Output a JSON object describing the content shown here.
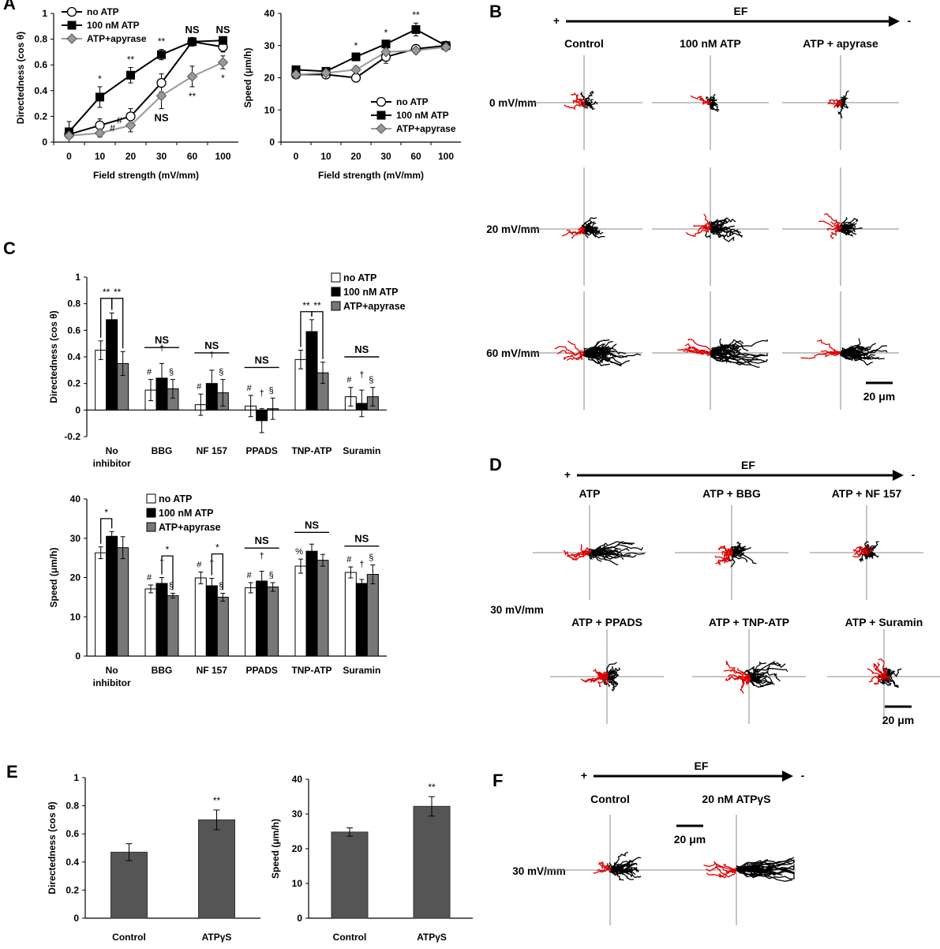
{
  "panels": {
    "A": "A",
    "B": "B",
    "C": "C",
    "D": "D",
    "E": "E",
    "F": "F"
  },
  "colors": {
    "track_red": "#e00000",
    "track_black": "#000000",
    "bar_gray": "#777777",
    "marker_gray": "#999999",
    "axis_gray": "#888888"
  },
  "chart_data": [
    {
      "id": "A-directedness",
      "type": "line",
      "categories": [
        "0",
        "10",
        "20",
        "30",
        "60",
        "100"
      ],
      "xlabel": "Field strength (mV/mm)",
      "ylabel": "Directedness (cos θ)",
      "ylim": [
        0,
        1
      ],
      "yticks": [
        "0",
        "0.2",
        "0.4",
        "0.6",
        "0.8",
        "1"
      ],
      "legend_position": "top-left",
      "series": [
        {
          "name": "no ATP",
          "marker": "open-circle",
          "values": [
            0.06,
            0.13,
            0.2,
            0.46,
            0.78,
            0.74
          ],
          "errors": [
            0.03,
            0.05,
            0.06,
            0.07,
            0.03,
            0.04
          ]
        },
        {
          "name": "100 nM ATP",
          "marker": "filled-square",
          "values": [
            0.08,
            0.35,
            0.52,
            0.68,
            0.78,
            0.79
          ],
          "errors": [
            0.08,
            0.08,
            0.06,
            0.04,
            0.03,
            0.02
          ]
        },
        {
          "name": "ATP+apyrase",
          "marker": "gray-diamond",
          "values": [
            0.05,
            0.07,
            0.13,
            0.36,
            0.51,
            0.62
          ],
          "errors": [
            0.02,
            0.03,
            0.05,
            0.1,
            0.08,
            0.05
          ]
        }
      ],
      "annotations": [
        {
          "cat": 1,
          "text": "*",
          "series": "100 nM ATP",
          "pos": "above"
        },
        {
          "cat": 2,
          "text": "**",
          "series": "100 nM ATP",
          "pos": "above"
        },
        {
          "cat": 3,
          "text": "**",
          "series": "100 nM ATP",
          "pos": "above"
        },
        {
          "cat": 4,
          "text": "NS",
          "series": "100 nM ATP",
          "pos": "above"
        },
        {
          "cat": 5,
          "text": "NS",
          "series": "100 nM ATP",
          "pos": "above"
        },
        {
          "cat": 1,
          "text": "#",
          "series": "ATP+apyrase",
          "pos": "right"
        },
        {
          "cat": 2,
          "text": "#",
          "series": "ATP+apyrase",
          "pos": "left"
        },
        {
          "cat": 3,
          "text": "NS",
          "series": "ATP+apyrase",
          "pos": "below"
        },
        {
          "cat": 4,
          "text": "**",
          "series": "ATP+apyrase",
          "pos": "below"
        },
        {
          "cat": 5,
          "text": "*",
          "series": "ATP+apyrase",
          "pos": "below"
        }
      ]
    },
    {
      "id": "A-speed",
      "type": "line",
      "categories": [
        "0",
        "10",
        "20",
        "30",
        "60",
        "100"
      ],
      "xlabel": "Field strength (mV/mm)",
      "ylabel": "Speed (μm/h)",
      "ylim": [
        0,
        40
      ],
      "yticks": [
        "0",
        "10",
        "20",
        "30",
        "40"
      ],
      "legend_position": "bottom-right",
      "series": [
        {
          "name": "no ATP",
          "marker": "open-circle",
          "values": [
            21,
            21,
            20,
            26.5,
            29,
            30
          ],
          "errors": [
            1,
            1,
            0.8,
            2,
            1,
            1
          ]
        },
        {
          "name": "100 nM ATP",
          "marker": "filled-square",
          "values": [
            22.5,
            22,
            26.5,
            30.5,
            35,
            30
          ],
          "errors": [
            1,
            1,
            1,
            1,
            2,
            1
          ]
        },
        {
          "name": "ATP+apyrase",
          "marker": "gray-diamond",
          "values": [
            21,
            21.5,
            22.5,
            28,
            28.5,
            29.5
          ],
          "errors": [
            1,
            1,
            1,
            1,
            1,
            1
          ]
        }
      ],
      "annotations": [
        {
          "cat": 2,
          "text": "*",
          "series": "100 nM ATP",
          "pos": "above"
        },
        {
          "cat": 3,
          "text": "*",
          "series": "100 nM ATP",
          "pos": "above"
        },
        {
          "cat": 4,
          "text": "**",
          "series": "100 nM ATP",
          "pos": "above"
        }
      ]
    },
    {
      "id": "C-directedness",
      "type": "bar",
      "categories": [
        "No\ninhibitor",
        "BBG",
        "NF 157",
        "PPADS",
        "TNP-ATP",
        "Suramin"
      ],
      "ylabel": "Directedness (cos θ)",
      "ylim": [
        -0.2,
        1
      ],
      "yticks": [
        "-0.2",
        "0",
        "0.2",
        "0.4",
        "0.6",
        "0.8",
        "1"
      ],
      "legend_position": "top-right",
      "series": [
        {
          "name": "no ATP",
          "fill": "white",
          "values": [
            0.45,
            0.15,
            0.04,
            0.03,
            0.38,
            0.1
          ],
          "errors": [
            0.07,
            0.08,
            0.08,
            0.08,
            0.07,
            0.07
          ]
        },
        {
          "name": "100 nM ATP",
          "fill": "black",
          "values": [
            0.68,
            0.24,
            0.2,
            -0.08,
            0.59,
            0.05
          ],
          "errors": [
            0.05,
            0.11,
            0.1,
            0.09,
            0.09,
            0.1
          ]
        },
        {
          "name": "ATP+apyrase",
          "fill": "gray",
          "values": [
            0.35,
            0.16,
            0.13,
            0.01,
            0.28,
            0.1
          ],
          "errors": [
            0.09,
            0.07,
            0.1,
            0.08,
            0.08,
            0.07
          ]
        }
      ],
      "brackets": [
        {
          "cat": 0,
          "pairs": [
            [
              0,
              1
            ],
            [
              1,
              2
            ]
          ],
          "labels": [
            "**",
            "**"
          ],
          "y": 0.84
        },
        {
          "cat": 4,
          "pairs": [
            [
              0,
              1
            ],
            [
              1,
              2
            ]
          ],
          "labels": [
            "**",
            "**"
          ],
          "y": 0.74
        }
      ],
      "group_labels": [
        {
          "cat": 1,
          "text": "NS",
          "y": 0.47
        },
        {
          "cat": 2,
          "text": "NS",
          "y": 0.43
        },
        {
          "cat": 3,
          "text": "NS",
          "y": 0.32
        },
        {
          "cat": 5,
          "text": "NS",
          "y": 0.4
        }
      ],
      "symbols": [
        {
          "cat": 1,
          "marks": [
            "#",
            "†",
            "§"
          ]
        },
        {
          "cat": 2,
          "marks": [
            "#",
            "†",
            "§"
          ]
        },
        {
          "cat": 3,
          "marks": [
            "#",
            "†",
            "§"
          ]
        },
        {
          "cat": 5,
          "marks": [
            "#",
            "†",
            "§"
          ]
        }
      ]
    },
    {
      "id": "C-speed",
      "type": "bar",
      "categories": [
        "No\ninhibitor",
        "BBG",
        "NF 157",
        "PPADS",
        "TNP-ATP",
        "Suramin"
      ],
      "ylabel": "Speed (μm/h)",
      "ylim": [
        0,
        40
      ],
      "yticks": [
        "0",
        "10",
        "20",
        "30",
        "40"
      ],
      "legend_position": "top-right",
      "series": [
        {
          "name": "no ATP",
          "fill": "white",
          "values": [
            26.3,
            17.1,
            19.9,
            17.4,
            22.9,
            21.3
          ],
          "errors": [
            1.5,
            1,
            1.5,
            1.3,
            1.8,
            1.4
          ]
        },
        {
          "name": "100 nM ATP",
          "fill": "black",
          "values": [
            30.5,
            18.5,
            17.9,
            19.1,
            26.7,
            18.5
          ],
          "errors": [
            1.2,
            1.5,
            1.9,
            2.5,
            1.8,
            1
          ]
        },
        {
          "name": "ATP+apyrase",
          "fill": "gray",
          "values": [
            27.6,
            15.4,
            15,
            17.6,
            24.4,
            20.8
          ],
          "errors": [
            2.8,
            0.6,
            1,
            1.1,
            1.5,
            2.4
          ]
        }
      ],
      "brackets": [
        {
          "cat": 0,
          "pairs": [
            [
              0,
              1
            ]
          ],
          "labels": [
            "*"
          ],
          "y": 35
        },
        {
          "cat": 1,
          "pairs": [
            [
              1,
              2
            ]
          ],
          "labels": [
            "*"
          ],
          "y": 25.5
        },
        {
          "cat": 2,
          "pairs": [
            [
              1,
              2
            ]
          ],
          "labels": [
            "*"
          ],
          "y": 26
        }
      ],
      "group_labels": [
        {
          "cat": 3,
          "text": "NS",
          "y": 27.5
        },
        {
          "cat": 4,
          "text": "NS",
          "y": 31.5
        },
        {
          "cat": 5,
          "text": "NS",
          "y": 28
        }
      ],
      "symbols": [
        {
          "cat": 1,
          "marks": [
            "#",
            "†",
            "§"
          ]
        },
        {
          "cat": 2,
          "marks": [
            "#",
            "†",
            "§"
          ]
        },
        {
          "cat": 3,
          "marks": [
            "#",
            "†",
            "§"
          ]
        },
        {
          "cat": 4,
          "marks": [
            "%",
            "",
            ""
          ]
        },
        {
          "cat": 5,
          "marks": [
            "#",
            "†",
            "§"
          ]
        }
      ]
    },
    {
      "id": "E-directedness",
      "type": "bar",
      "categories": [
        "Control",
        "ATPγS"
      ],
      "ylabel": "Directedness (cos θ)",
      "ylim": [
        0,
        1
      ],
      "yticks": [
        "0",
        "0.2",
        "0.4",
        "0.6",
        "0.8",
        "1"
      ],
      "values": [
        0.47,
        0.7
      ],
      "errors": [
        0.06,
        0.07
      ],
      "labels": [
        "",
        "**"
      ]
    },
    {
      "id": "E-speed",
      "type": "bar",
      "categories": [
        "Control",
        "ATPγS"
      ],
      "ylabel": "Speed (μm/h)",
      "ylim": [
        0,
        40
      ],
      "yticks": [
        "0",
        "10",
        "20",
        "30",
        "40"
      ],
      "values": [
        24.8,
        32.2
      ],
      "errors": [
        1.2,
        2.8
      ],
      "labels": [
        "",
        "**"
      ]
    }
  ],
  "panel_B": {
    "ef_label": "EF",
    "plus": "+",
    "minus": "-",
    "columns": [
      "Control",
      "100 nM ATP",
      "ATP + apyrase"
    ],
    "rows": [
      "0 mV/mm",
      "20 mV/mm",
      "60 mV/mm"
    ],
    "scale_label": "20 μm"
  },
  "panel_D": {
    "ef_label": "EF",
    "plus": "+",
    "minus": "-",
    "row_label": "30 mV/mm",
    "top": [
      "ATP",
      "ATP + BBG",
      "ATP + NF 157"
    ],
    "bottom": [
      "ATP + PPADS",
      "ATP + TNP-ATP",
      "ATP + Suramin"
    ],
    "scale_label": "20 μm"
  },
  "panel_F": {
    "ef_label": "EF",
    "plus": "+",
    "minus": "-",
    "columns": [
      "Control",
      "20 nM ATPγS"
    ],
    "row_label": "30 mV/mm",
    "scale_label": "20 μm"
  }
}
